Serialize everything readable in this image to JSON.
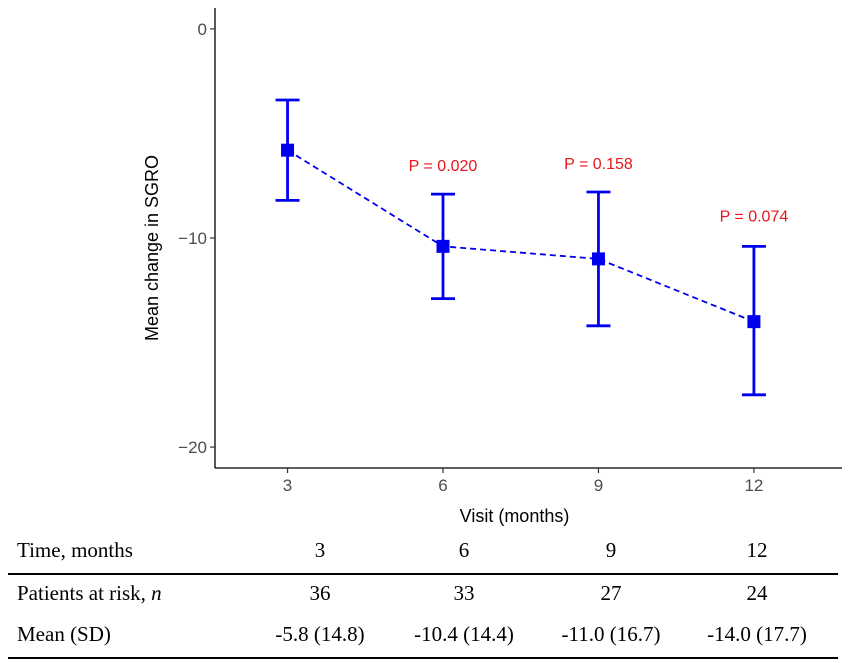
{
  "chart_data": {
    "type": "line",
    "xlabel": "Visit (months)",
    "ylabel": "Mean change in SGRO",
    "xlim": [
      1.6,
      13.7
    ],
    "ylim": [
      -21,
      1
    ],
    "x": [
      3,
      6,
      9,
      12
    ],
    "xticks": [
      "3",
      "6",
      "9",
      "12"
    ],
    "yticks": [
      0,
      -10,
      -20
    ],
    "ytick_labels": [
      "0",
      "−10",
      "−20"
    ],
    "series": [
      {
        "name": "Mean change in SGRO",
        "values": [
          -5.8,
          -10.4,
          -11.0,
          -14.0
        ],
        "lower": [
          -8.2,
          -12.9,
          -14.2,
          -17.5
        ],
        "upper": [
          -3.4,
          -7.9,
          -7.8,
          -10.4
        ],
        "color": "#0000ee",
        "line_style": "dashed",
        "marker": "square"
      }
    ],
    "annotations": [
      {
        "x": 6,
        "y": -6.8,
        "text": "P = 0.020",
        "color": "#e8141c"
      },
      {
        "x": 9,
        "y": -6.7,
        "text": "P = 0.158",
        "color": "#e8141c"
      },
      {
        "x": 12,
        "y": -9.2,
        "text": "P = 0.074",
        "color": "#e8141c"
      }
    ]
  },
  "table": {
    "header": {
      "label": "Time, months",
      "values": [
        "3",
        "6",
        "9",
        "12"
      ]
    },
    "rows": [
      {
        "label": "Patients at risk, ",
        "label_italic": "n",
        "values": [
          "36",
          "33",
          "27",
          "24"
        ]
      },
      {
        "label": "Mean (SD)",
        "values": [
          "-5.8 (14.8)",
          "-10.4 (14.4)",
          "-11.0 (16.7)",
          "-14.0 (17.7)"
        ]
      }
    ]
  }
}
